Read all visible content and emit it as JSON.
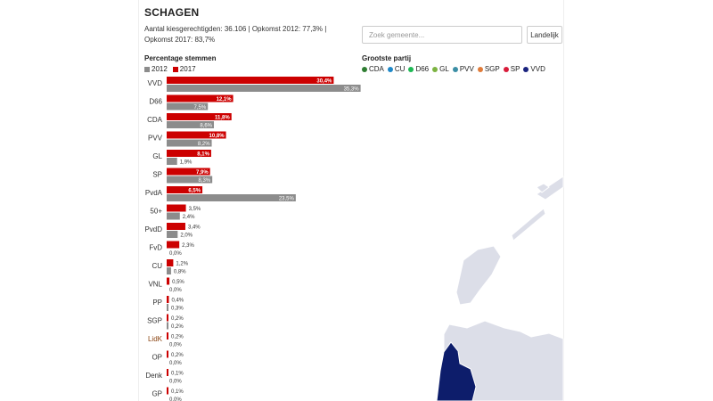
{
  "municipality": "SCHAGEN",
  "stats": {
    "line1": "Aantal kiesgerechtigden: 36.106 | Opkomst 2012: 77,3% |",
    "line2": "Opkomst 2017: 83,7%"
  },
  "search": {
    "placeholder": "Zoek gemeente..."
  },
  "buttons": {
    "landelijk": "Landelijk"
  },
  "map_heading": "Grootste partij",
  "party_legend": [
    {
      "name": "CDA",
      "color": "#2e7d32"
    },
    {
      "name": "CU",
      "color": "#1e88c8"
    },
    {
      "name": "D66",
      "color": "#1db954"
    },
    {
      "name": "GL",
      "color": "#7cb342"
    },
    {
      "name": "PVV",
      "color": "#3b8ea5"
    },
    {
      "name": "SGP",
      "color": "#e07b39"
    },
    {
      "name": "SP",
      "color": "#d81b3a"
    },
    {
      "name": "VVD",
      "color": "#1a237e"
    }
  ],
  "colors": {
    "bar_2017": "#cc0000",
    "bar_2012": "#8c8c8c",
    "label_red": "#cc0000",
    "map_land": "#dcdee8",
    "map_selected": "#0d1d6b"
  },
  "chart_data": {
    "type": "bar",
    "title": "Percentage stemmen",
    "legend": [
      "2012",
      "2017"
    ],
    "categories": [
      "VVD",
      "D66",
      "CDA",
      "PVV",
      "GL",
      "SP",
      "PvdA",
      "50+",
      "PvdD",
      "FvD",
      "CU",
      "VNL",
      "PP",
      "SGP",
      "LidK",
      "OP",
      "Denk",
      "GP"
    ],
    "series": [
      {
        "name": "2017",
        "values": [
          30.4,
          12.1,
          11.8,
          10.8,
          8.1,
          7.9,
          6.5,
          3.5,
          3.4,
          2.3,
          1.2,
          0.5,
          0.4,
          0.2,
          0.2,
          0.2,
          0.1,
          0.1
        ]
      },
      {
        "name": "2012",
        "values": [
          35.3,
          7.5,
          8.6,
          8.2,
          1.9,
          8.3,
          23.5,
          2.4,
          2.0,
          0.0,
          0.8,
          0.0,
          0.3,
          0.2,
          0.0,
          0.0,
          0.0,
          0.0
        ]
      }
    ],
    "labels_2017": [
      "30,4%",
      "12,1%",
      "11,8%",
      "10,8%",
      "8,1%",
      "7,9%",
      "6,5%",
      "3,5%",
      "3,4%",
      "2,3%",
      "1,2%",
      "0,5%",
      "0,4%",
      "0,2%",
      "0,2%",
      "0,2%",
      "0,1%",
      "0,1%"
    ],
    "labels_2012": [
      "35,3%",
      "7,5%",
      "8,6%",
      "8,2%",
      "1,9%",
      "8,3%",
      "23,5%",
      "2,4%",
      "2,0%",
      "0,0%",
      "0,8%",
      "0,0%",
      "0,3%",
      "0,2%",
      "0,0%",
      "0,0%",
      "0,0%",
      "0,0%"
    ],
    "category_label_colors": {
      "LidK": "#8b4513"
    }
  }
}
